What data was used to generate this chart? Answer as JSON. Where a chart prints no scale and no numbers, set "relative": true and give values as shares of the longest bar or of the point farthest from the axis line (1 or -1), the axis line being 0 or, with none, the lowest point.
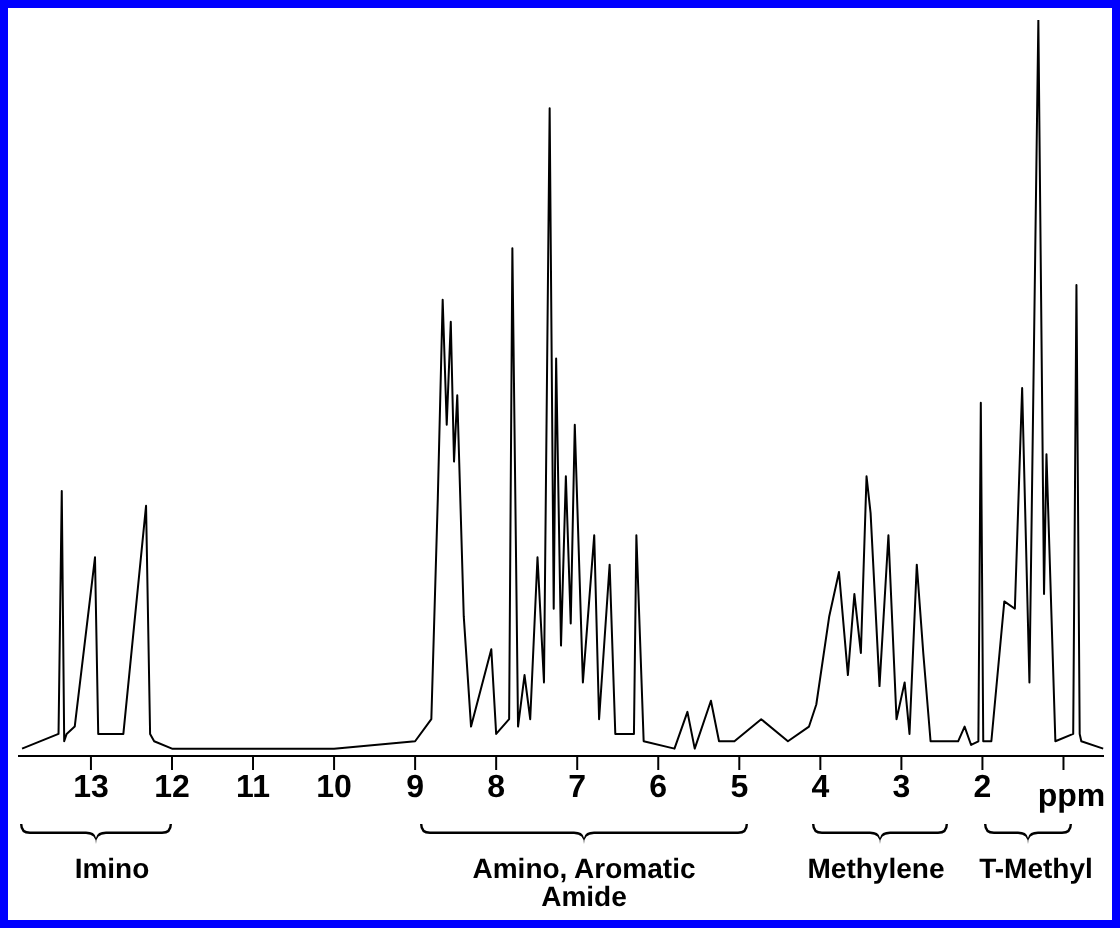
{
  "chart_data": {
    "type": "line",
    "relative": true,
    "xlabel": "ppm",
    "xlim": [
      13.9,
      0.5
    ],
    "xticks": [
      13,
      12,
      11,
      10,
      9,
      8,
      7,
      6,
      5,
      4,
      3,
      2,
      {
        "value": 1,
        "label": null
      }
    ],
    "x": [
      13.85,
      13.4,
      13.36,
      13.33,
      13.3,
      13.2,
      12.95,
      12.91,
      12.87,
      12.6,
      12.32,
      12.27,
      12.22,
      12.0,
      10.0,
      9.0,
      8.8,
      8.72,
      8.66,
      8.61,
      8.56,
      8.52,
      8.48,
      8.4,
      8.31,
      8.06,
      8.0,
      7.84,
      7.8,
      7.73,
      7.65,
      7.58,
      7.49,
      7.41,
      7.34,
      7.29,
      7.26,
      7.2,
      7.14,
      7.08,
      7.03,
      6.93,
      6.79,
      6.73,
      6.6,
      6.53,
      6.3,
      6.27,
      6.18,
      5.8,
      5.64,
      5.55,
      5.35,
      5.25,
      5.06,
      4.73,
      4.4,
      4.14,
      4.05,
      3.89,
      3.77,
      3.66,
      3.58,
      3.5,
      3.43,
      3.38,
      3.27,
      3.16,
      3.06,
      2.96,
      2.9,
      2.81,
      2.73,
      2.64,
      2.3,
      2.22,
      2.14,
      2.05,
      2.02,
      1.99,
      1.96,
      1.89,
      1.73,
      1.6,
      1.51,
      1.42,
      1.31,
      1.24,
      1.21,
      1.1,
      0.88,
      0.84,
      0.8,
      0.78,
      0.51
    ],
    "series": [
      {
        "color": "#000000",
        "values": [
          0.01,
          0.03,
          0.36,
          0.02,
          0.03,
          0.04,
          0.27,
          0.03,
          0.03,
          0.03,
          0.34,
          0.03,
          0.02,
          0.01,
          0.01,
          0.02,
          0.05,
          0.35,
          0.62,
          0.45,
          0.59,
          0.4,
          0.49,
          0.19,
          0.04,
          0.145,
          0.03,
          0.05,
          0.69,
          0.04,
          0.11,
          0.05,
          0.27,
          0.1,
          0.88,
          0.2,
          0.54,
          0.15,
          0.38,
          0.18,
          0.45,
          0.1,
          0.3,
          0.05,
          0.26,
          0.03,
          0.03,
          0.3,
          0.02,
          0.01,
          0.06,
          0.01,
          0.075,
          0.02,
          0.02,
          0.05,
          0.02,
          0.04,
          0.07,
          0.19,
          0.25,
          0.11,
          0.22,
          0.14,
          0.38,
          0.33,
          0.095,
          0.3,
          0.05,
          0.1,
          0.03,
          0.26,
          0.14,
          0.02,
          0.02,
          0.04,
          0.015,
          0.02,
          0.48,
          0.02,
          0.02,
          0.02,
          0.21,
          0.2,
          0.5,
          0.1,
          1.0,
          0.22,
          0.41,
          0.02,
          0.03,
          0.64,
          0.03,
          0.02,
          0.01
        ]
      }
    ],
    "annotations": [
      "Imino",
      "Amino, Aromatic\nAmide",
      "Methylene",
      "T-Methyl"
    ]
  }
}
